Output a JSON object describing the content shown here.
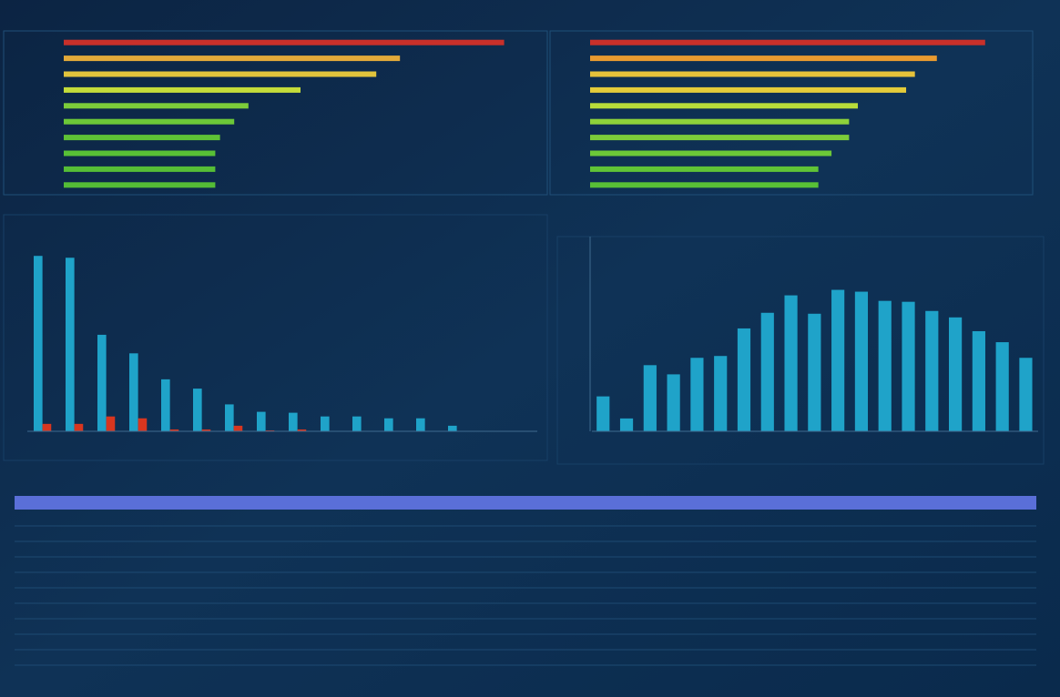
{
  "chart_data": [
    {
      "type": "bar",
      "horizontal": true,
      "xlim": [
        0,
        100
      ],
      "values": [
        93,
        71,
        66,
        50,
        39,
        36,
        33,
        32,
        32,
        32
      ],
      "colors": [
        "#c8302a",
        "#e2a93a",
        "#e2c43c",
        "#c4dc3a",
        "#7ccc3a",
        "#6cc838",
        "#5ec236",
        "#58c036",
        "#56be36",
        "#54bc36"
      ]
    },
    {
      "type": "bar",
      "horizontal": true,
      "xlim": [
        0,
        100
      ],
      "values": [
        90,
        79,
        74,
        72,
        61,
        59,
        59,
        55,
        52,
        52
      ],
      "colors": [
        "#c8302a",
        "#e89a30",
        "#e6c23a",
        "#e4cc3a",
        "#b8dc3a",
        "#8ed23a",
        "#7ccc3a",
        "#6cc838",
        "#60c436",
        "#58c036"
      ]
    },
    {
      "type": "bar",
      "ylim": [
        0,
        200
      ],
      "series": [
        {
          "color": "#1fa3c9",
          "values": [
            189,
            187,
            104,
            84,
            56,
            46,
            29,
            21,
            20,
            16,
            16,
            14,
            14,
            6,
            0,
            0
          ]
        },
        {
          "color": "#d8361f",
          "values": [
            8,
            8,
            16,
            14,
            2,
            2,
            6,
            1,
            2,
            0,
            0,
            0,
            0,
            0,
            0,
            0
          ]
        }
      ]
    },
    {
      "type": "bar",
      "ylim": [
        0,
        210
      ],
      "color": "#1fa3c9",
      "values": [
        38,
        14,
        72,
        62,
        80,
        82,
        112,
        129,
        148,
        128,
        154,
        152,
        142,
        141,
        131,
        124,
        109,
        97,
        80
      ]
    }
  ]
}
